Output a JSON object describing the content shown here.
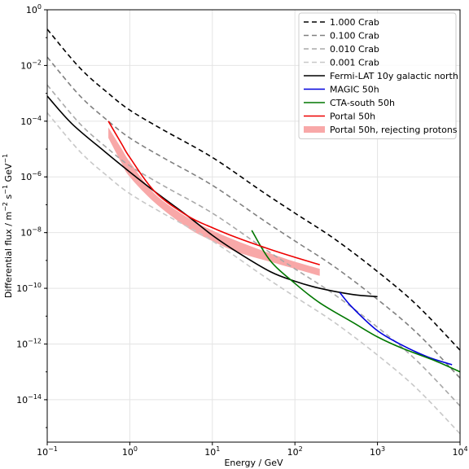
{
  "chart_data": {
    "type": "line",
    "title": "",
    "xlabel": "Energy / GeV",
    "ylabel_parts": [
      "Differential flux / m",
      "−2",
      " s",
      "−1",
      " GeV",
      "−1"
    ],
    "x_scale": "log",
    "y_scale": "log",
    "xlim": [
      0.1,
      10000
    ],
    "ylim": [
      3e-16,
      1
    ],
    "grid": true,
    "legend_position": "top-right",
    "x_ticks": [
      {
        "value": 0.1,
        "base": "10",
        "exp": "−1"
      },
      {
        "value": 1,
        "base": "10",
        "exp": "0"
      },
      {
        "value": 10,
        "base": "10",
        "exp": "1"
      },
      {
        "value": 100,
        "base": "10",
        "exp": "2"
      },
      {
        "value": 1000,
        "base": "10",
        "exp": "3"
      },
      {
        "value": 10000,
        "base": "10",
        "exp": "4"
      }
    ],
    "y_ticks": [
      {
        "value": 1,
        "base": "10",
        "exp": "0"
      },
      {
        "value": 0.01,
        "base": "10",
        "exp": "−2"
      },
      {
        "value": 0.0001,
        "base": "10",
        "exp": "−4"
      },
      {
        "value": 1e-06,
        "base": "10",
        "exp": "−6"
      },
      {
        "value": 1e-08,
        "base": "10",
        "exp": "−8"
      },
      {
        "value": 1e-10,
        "base": "10",
        "exp": "−10"
      },
      {
        "value": 1e-12,
        "base": "10",
        "exp": "−12"
      },
      {
        "value": 1e-14,
        "base": "10",
        "exp": "−14"
      }
    ],
    "series": [
      {
        "name": "1.000 Crab",
        "color": "#000000",
        "dash": "dashed",
        "kind": "line",
        "x": [
          0.1,
          0.25,
          0.55,
          1,
          2.5,
          10,
          40,
          100,
          300,
          1000,
          3000,
          10000
        ],
        "y": [
          0.2,
          0.008,
          0.001,
          0.00025,
          5e-05,
          5e-06,
          3e-07,
          5e-08,
          6e-09,
          4e-10,
          2.5e-11,
          6e-13
        ]
      },
      {
        "name": "0.100 Crab",
        "color": "#808080",
        "dash": "dashed",
        "kind": "line",
        "x": [
          0.1,
          0.25,
          0.55,
          1,
          2.5,
          10,
          40,
          100,
          300,
          1000,
          3000,
          10000
        ],
        "y": [
          0.02,
          0.0008,
          0.0001,
          2.5e-05,
          5e-06,
          5e-07,
          3e-08,
          5e-09,
          6e-10,
          4e-11,
          2.5e-12,
          6e-14
        ]
      },
      {
        "name": "0.010 Crab",
        "color": "#a8a8a8",
        "dash": "dashed",
        "kind": "line",
        "x": [
          0.1,
          0.25,
          0.55,
          1,
          2.5,
          10,
          40,
          100,
          300,
          1000,
          3000,
          10000
        ],
        "y": [
          0.002,
          8e-05,
          1e-05,
          2.5e-06,
          5e-07,
          5e-08,
          3e-09,
          5e-10,
          6e-11,
          4e-12,
          2.5e-13,
          6e-15
        ]
      },
      {
        "name": "0.001 Crab",
        "color": "#c8c8c8",
        "dash": "dashed",
        "kind": "line",
        "x": [
          0.1,
          0.25,
          0.55,
          1,
          2.5,
          10,
          40,
          100,
          300,
          1000,
          3000,
          10000
        ],
        "y": [
          0.0002,
          8e-06,
          1e-06,
          2.5e-07,
          5e-08,
          5e-09,
          3e-10,
          5e-11,
          6e-12,
          4e-13,
          2.5e-14,
          6e-16
        ]
      },
      {
        "name": "Fermi-LAT 10y galactic north",
        "color": "#000000",
        "dash": "solid",
        "kind": "line",
        "x": [
          0.1,
          0.2,
          0.5,
          1,
          2,
          5,
          10,
          20,
          50,
          100,
          200,
          500,
          1000
        ],
        "y": [
          0.0008,
          8e-05,
          8e-06,
          1.5e-06,
          3e-07,
          4e-08,
          8e-09,
          2e-09,
          4e-10,
          1.8e-10,
          1e-10,
          6e-11,
          5e-11
        ]
      },
      {
        "name": "MAGIC 50h",
        "color": "#0000dd",
        "dash": "solid",
        "kind": "line",
        "x": [
          350,
          500,
          1000,
          2000,
          4000,
          8000
        ],
        "y": [
          7e-11,
          2e-11,
          3e-12,
          9e-13,
          3.5e-13,
          1.8e-13
        ]
      },
      {
        "name": "CTA-south 50h",
        "color": "#007700",
        "dash": "solid",
        "kind": "line",
        "x": [
          30,
          50,
          100,
          200,
          500,
          1000,
          2000,
          5000,
          10000
        ],
        "y": [
          1.2e-08,
          1e-09,
          1.5e-10,
          3e-11,
          6e-12,
          1.8e-12,
          7e-13,
          2.5e-13,
          1e-13
        ]
      },
      {
        "name": "Portal 50h",
        "color": "#ee0000",
        "dash": "solid",
        "kind": "line",
        "x": [
          0.55,
          0.8,
          1,
          2,
          5,
          10,
          20,
          50,
          100,
          200
        ],
        "y": [
          0.0001,
          1.5e-05,
          5e-06,
          3e-07,
          4e-08,
          1.5e-08,
          6.5e-09,
          2.5e-09,
          1.3e-09,
          7e-10
        ]
      },
      {
        "name": "Portal 50h, rejecting protons",
        "color": "#f8a8a8",
        "dash": "solid",
        "kind": "band",
        "x": [
          0.55,
          0.8,
          1,
          2,
          5,
          10,
          20,
          50,
          100,
          200
        ],
        "upper": [
          6e-05,
          1e-05,
          3.5e-06,
          2.5e-07,
          3.5e-08,
          1.2e-08,
          5e-09,
          1.8e-09,
          9e-10,
          5e-10
        ],
        "lower": [
          2.5e-05,
          3e-06,
          1e-06,
          1.2e-07,
          1.5e-08,
          5e-09,
          2e-09,
          9e-10,
          5e-10,
          2.8e-10
        ]
      }
    ]
  }
}
